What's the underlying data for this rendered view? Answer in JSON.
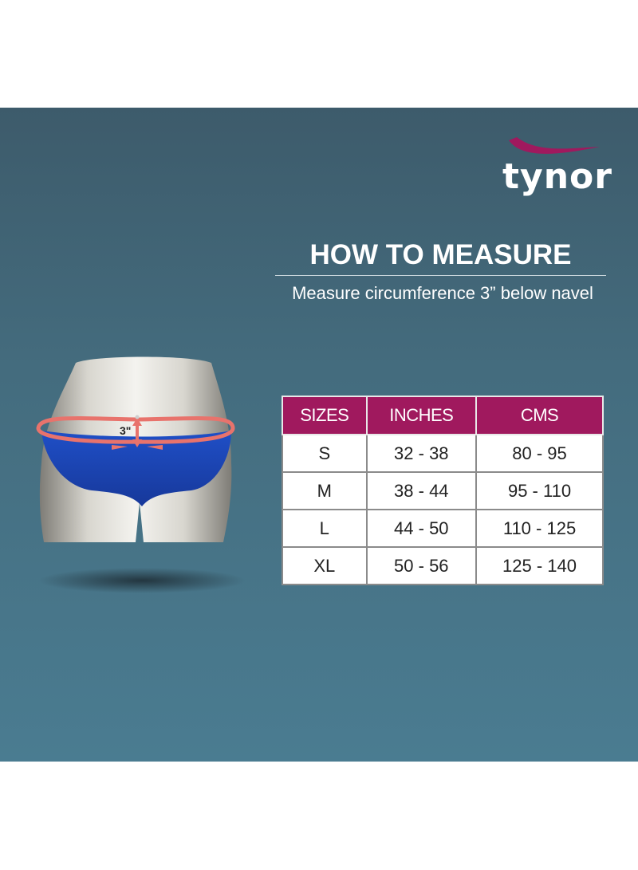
{
  "brand": {
    "name": "tynor",
    "swoosh_color": "#a0195e"
  },
  "heading": "HOW TO MEASURE",
  "subheading": "Measure circumference 3” below navel",
  "figure": {
    "marker_label": "3\""
  },
  "size_table": {
    "header_color": "#a0195e",
    "columns": [
      "SIZES",
      "INCHES",
      "CMS"
    ],
    "rows": [
      [
        "S",
        "32 - 38",
        "80 - 95"
      ],
      [
        "M",
        "38 - 44",
        "95 - 110"
      ],
      [
        "L",
        "44 - 50",
        "110 - 125"
      ],
      [
        "XL",
        "50 - 56",
        "125 - 140"
      ]
    ]
  }
}
